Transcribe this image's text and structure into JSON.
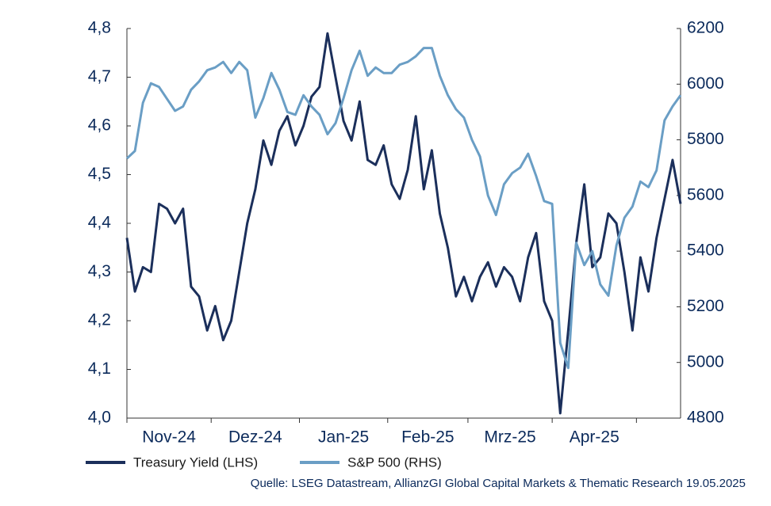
{
  "chart_data": {
    "type": "line",
    "x": [
      0,
      2,
      4,
      6,
      8,
      10,
      12,
      14,
      16,
      18,
      20,
      22,
      24,
      26,
      28,
      30,
      32,
      34,
      36,
      38,
      40,
      42,
      44,
      46,
      48,
      50,
      52,
      54,
      56,
      58,
      60,
      62,
      64,
      66,
      68,
      70,
      72,
      74,
      76,
      78,
      80,
      82,
      84,
      86,
      88,
      90,
      92,
      94,
      96,
      98,
      100,
      102,
      104,
      106,
      108,
      110,
      112,
      114,
      116,
      118,
      120,
      122,
      124,
      126,
      128,
      130,
      132,
      134,
      136,
      138
    ],
    "xlim": [
      0,
      138
    ],
    "xticks": [
      0,
      21,
      43,
      65,
      85,
      106,
      127
    ],
    "month_labels": [
      "Nov-24",
      "Dez-24",
      "Jan-25",
      "Feb-25",
      "Mrz-25",
      "Apr-25"
    ],
    "series": [
      {
        "name": "Treasury Yield (LHS)",
        "color": "#1b2f5b",
        "axis": "y",
        "values": [
          4.37,
          4.26,
          4.31,
          4.3,
          4.44,
          4.43,
          4.4,
          4.43,
          4.27,
          4.25,
          4.18,
          4.23,
          4.16,
          4.2,
          4.3,
          4.4,
          4.47,
          4.57,
          4.52,
          4.59,
          4.62,
          4.56,
          4.6,
          4.66,
          4.68,
          4.79,
          4.7,
          4.61,
          4.57,
          4.65,
          4.53,
          4.52,
          4.56,
          4.48,
          4.45,
          4.51,
          4.62,
          4.47,
          4.55,
          4.42,
          4.35,
          4.25,
          4.29,
          4.24,
          4.29,
          4.32,
          4.27,
          4.31,
          4.29,
          4.24,
          4.33,
          4.38,
          4.24,
          4.2,
          4.01,
          4.18,
          4.36,
          4.48,
          4.31,
          4.33,
          4.42,
          4.4,
          4.3,
          4.18,
          4.33,
          4.26,
          4.37,
          4.45,
          4.53,
          4.44
        ]
      },
      {
        "name": "S&P 500 (RHS)",
        "color": "#6a9ec5",
        "axis": "y2",
        "values": [
          5733,
          5760,
          5933,
          6003,
          5990,
          5947,
          5904,
          5920,
          5980,
          6010,
          6050,
          6060,
          6080,
          6040,
          6080,
          6050,
          5880,
          5950,
          6040,
          5980,
          5900,
          5890,
          5960,
          5920,
          5890,
          5820,
          5860,
          5950,
          6050,
          6120,
          6030,
          6060,
          6040,
          6040,
          6070,
          6080,
          6100,
          6130,
          6130,
          6030,
          5960,
          5910,
          5880,
          5800,
          5740,
          5600,
          5530,
          5640,
          5680,
          5700,
          5750,
          5670,
          5580,
          5570,
          5070,
          4980,
          5430,
          5350,
          5400,
          5280,
          5240,
          5420,
          5520,
          5560,
          5650,
          5630,
          5690,
          5870,
          5920,
          5960
        ]
      }
    ],
    "ylim": [
      4.0,
      4.8
    ],
    "yticks": [
      {
        "value": 4.0,
        "label": "4,0"
      },
      {
        "value": 4.1,
        "label": "4,1"
      },
      {
        "value": 4.2,
        "label": "4,2"
      },
      {
        "value": 4.3,
        "label": "4,3"
      },
      {
        "value": 4.4,
        "label": "4,4"
      },
      {
        "value": 4.5,
        "label": "4,5"
      },
      {
        "value": 4.6,
        "label": "4,6"
      },
      {
        "value": 4.7,
        "label": "4,7"
      },
      {
        "value": 4.8,
        "label": "4,8"
      }
    ],
    "y2lim": [
      4800,
      6200
    ],
    "y2ticks": [
      4800,
      5000,
      5200,
      5400,
      5600,
      5800,
      6000,
      6200
    ],
    "source": "Quelle: LSEG Datastream, AllianzGI Global Capital Markets & Thematic Research 19.05.2025"
  }
}
